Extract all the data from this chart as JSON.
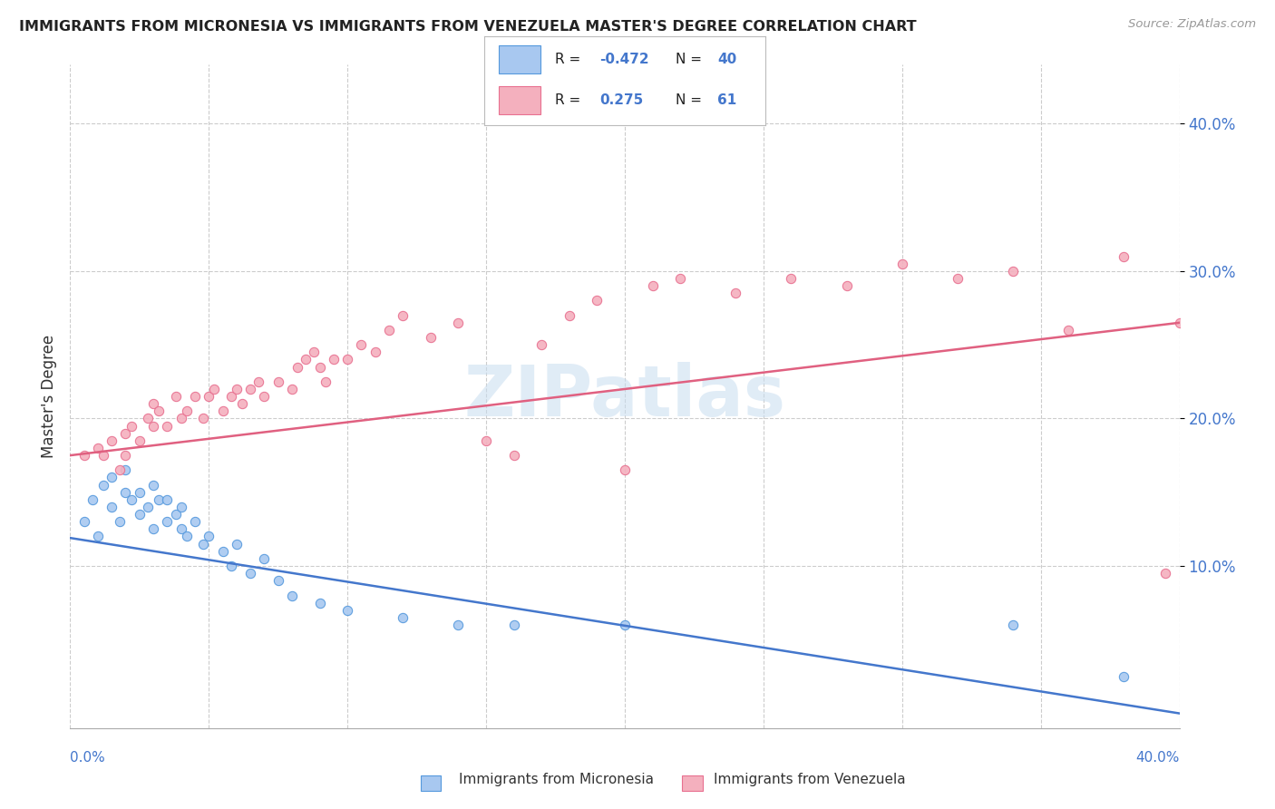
{
  "title": "IMMIGRANTS FROM MICRONESIA VS IMMIGRANTS FROM VENEZUELA MASTER'S DEGREE CORRELATION CHART",
  "source": "Source: ZipAtlas.com",
  "ylabel": "Master's Degree",
  "xlim": [
    0.0,
    0.4
  ],
  "ylim": [
    -0.01,
    0.44
  ],
  "ytick_values": [
    0.1,
    0.2,
    0.3,
    0.4
  ],
  "watermark": "ZIPatlas",
  "micronesia_color": "#a8c8f0",
  "venezuela_color": "#f4b0be",
  "micronesia_edge_color": "#5599dd",
  "venezuela_edge_color": "#e87090",
  "micronesia_line_color": "#4477cc",
  "venezuela_line_color": "#e06080",
  "background_color": "#ffffff",
  "grid_color": "#cccccc",
  "r_color": "#4477cc",
  "legend_r1_val": "-0.472",
  "legend_n1": "40",
  "legend_r2_val": "0.275",
  "legend_n2": "61",
  "mic_x": [
    0.005,
    0.008,
    0.01,
    0.012,
    0.015,
    0.015,
    0.018,
    0.02,
    0.02,
    0.022,
    0.025,
    0.025,
    0.028,
    0.03,
    0.03,
    0.032,
    0.035,
    0.035,
    0.038,
    0.04,
    0.04,
    0.042,
    0.045,
    0.048,
    0.05,
    0.055,
    0.058,
    0.06,
    0.065,
    0.07,
    0.075,
    0.08,
    0.09,
    0.1,
    0.12,
    0.14,
    0.16,
    0.2,
    0.34,
    0.38
  ],
  "mic_y": [
    0.13,
    0.145,
    0.12,
    0.155,
    0.14,
    0.16,
    0.13,
    0.15,
    0.165,
    0.145,
    0.135,
    0.15,
    0.14,
    0.155,
    0.125,
    0.145,
    0.13,
    0.145,
    0.135,
    0.125,
    0.14,
    0.12,
    0.13,
    0.115,
    0.12,
    0.11,
    0.1,
    0.115,
    0.095,
    0.105,
    0.09,
    0.08,
    0.075,
    0.07,
    0.065,
    0.06,
    0.06,
    0.06,
    0.06,
    0.025
  ],
  "ven_x": [
    0.005,
    0.01,
    0.012,
    0.015,
    0.018,
    0.02,
    0.02,
    0.022,
    0.025,
    0.028,
    0.03,
    0.03,
    0.032,
    0.035,
    0.038,
    0.04,
    0.042,
    0.045,
    0.048,
    0.05,
    0.052,
    0.055,
    0.058,
    0.06,
    0.062,
    0.065,
    0.068,
    0.07,
    0.075,
    0.08,
    0.082,
    0.085,
    0.088,
    0.09,
    0.092,
    0.095,
    0.1,
    0.105,
    0.11,
    0.115,
    0.12,
    0.13,
    0.14,
    0.15,
    0.16,
    0.17,
    0.18,
    0.19,
    0.2,
    0.21,
    0.22,
    0.24,
    0.26,
    0.28,
    0.3,
    0.32,
    0.34,
    0.36,
    0.38,
    0.395,
    0.4
  ],
  "ven_y": [
    0.175,
    0.18,
    0.175,
    0.185,
    0.165,
    0.19,
    0.175,
    0.195,
    0.185,
    0.2,
    0.195,
    0.21,
    0.205,
    0.195,
    0.215,
    0.2,
    0.205,
    0.215,
    0.2,
    0.215,
    0.22,
    0.205,
    0.215,
    0.22,
    0.21,
    0.22,
    0.225,
    0.215,
    0.225,
    0.22,
    0.235,
    0.24,
    0.245,
    0.235,
    0.225,
    0.24,
    0.24,
    0.25,
    0.245,
    0.26,
    0.27,
    0.255,
    0.265,
    0.185,
    0.175,
    0.25,
    0.27,
    0.28,
    0.165,
    0.29,
    0.295,
    0.285,
    0.295,
    0.29,
    0.305,
    0.295,
    0.3,
    0.26,
    0.31,
    0.095,
    0.265
  ]
}
